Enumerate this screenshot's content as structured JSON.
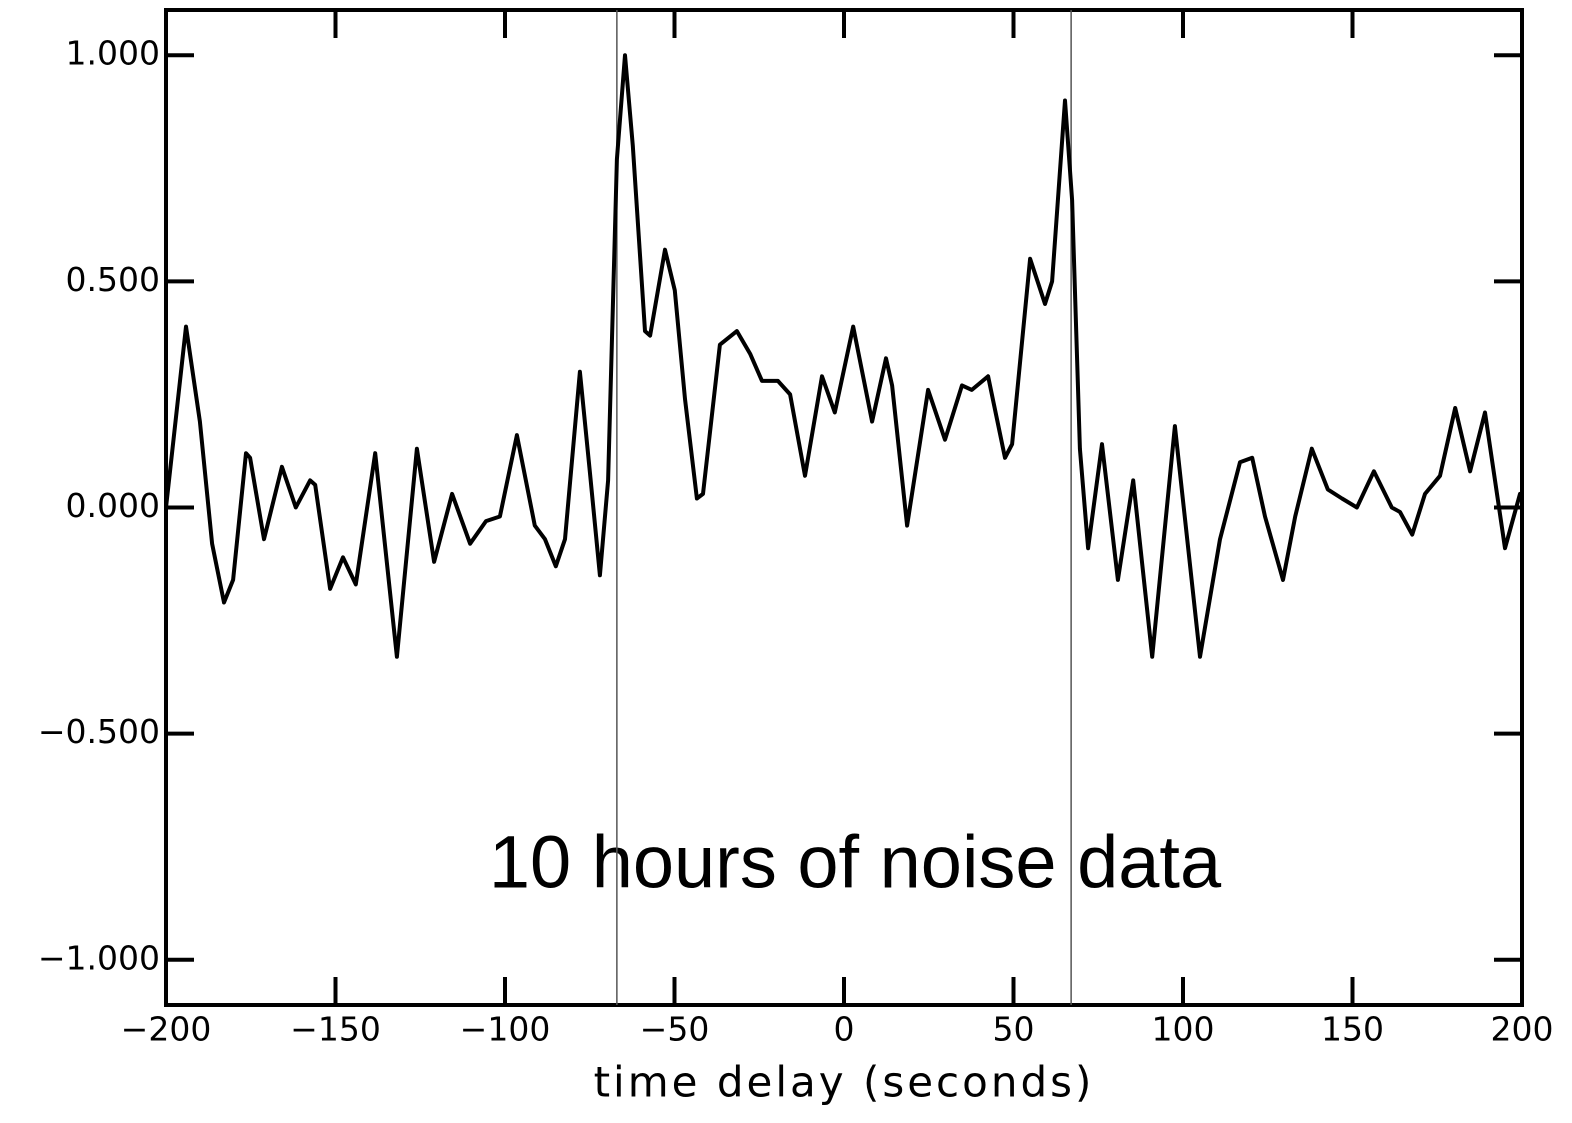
{
  "chart_data": {
    "type": "line",
    "xlabel": "time delay (seconds)",
    "annotation": "10 hours of noise data",
    "xlim": [
      -200,
      200
    ],
    "ylim": [
      -1.1,
      1.1
    ],
    "xticks": [
      {
        "value": -200,
        "label": "−200"
      },
      {
        "value": -150,
        "label": "−150"
      },
      {
        "value": -100,
        "label": "−100"
      },
      {
        "value": -50,
        "label": "−50"
      },
      0,
      50,
      100,
      150,
      200
    ],
    "yticks": [
      {
        "value": -1,
        "label": "−1.000"
      },
      {
        "value": -0.5,
        "label": "−0.500"
      },
      {
        "value": 0,
        "label": "0.000"
      },
      {
        "value": 0.5,
        "label": "0.500"
      },
      {
        "value": 1,
        "label": "1.000"
      }
    ],
    "vlines": [
      -67,
      67
    ],
    "color": "#000000",
    "x": [
      -200,
      -194.1,
      -190,
      -186.4,
      -182.9,
      -180.2,
      -176.4,
      -175.2,
      -171.1,
      -165.8,
      -161.7,
      -157.5,
      -156,
      -151.6,
      -147.8,
      -144,
      -138.3,
      -131.9,
      -126,
      -120.9,
      -115.6,
      -110.3,
      -105.6,
      -101.5,
      -96.5,
      -91.2,
      -88.2,
      -85,
      -82.3,
      -77.9,
      -75,
      -72,
      -69.6,
      -67,
      -64.6,
      -62.3,
      -58.7,
      -57.2,
      -52.8,
      -49.9,
      -46.9,
      -43.4,
      -41.6,
      -36.6,
      -31.6,
      -27.7,
      -24.2,
      -19.5,
      -15.9,
      -11.5,
      -6.5,
      -2.7,
      2.7,
      8.3,
      12.4,
      14.2,
      18.6,
      24.8,
      29.8,
      34.8,
      37.7,
      42.5,
      47.5,
      49.6,
      54.9,
      59.3,
      61.4,
      65.2,
      67.3,
      69.6,
      72,
      76.1,
      80.8,
      85.3,
      90.9,
      97.6,
      105,
      110.9,
      116.8,
      120.4,
      124.2,
      129.5,
      133.1,
      138,
      142.7,
      146.9,
      151.3,
      156.3,
      161.6,
      164,
      167.6,
      171.4,
      175.8,
      180.3,
      184.7,
      189.1,
      195,
      199.4
    ],
    "values": [
      0,
      0.4,
      0.19,
      -0.08,
      -0.21,
      -0.16,
      0.12,
      0.11,
      -0.07,
      0.09,
      0,
      0.06,
      0.05,
      -0.18,
      -0.11,
      -0.17,
      0.12,
      -0.33,
      0.13,
      -0.12,
      0.03,
      -0.08,
      -0.03,
      -0.02,
      0.16,
      -0.04,
      -0.07,
      -0.13,
      -0.07,
      0.3,
      0.08,
      -0.15,
      0.06,
      0.77,
      1,
      0.8,
      0.39,
      0.38,
      0.57,
      0.48,
      0.24,
      0.02,
      0.03,
      0.36,
      0.39,
      0.34,
      0.28,
      0.28,
      0.25,
      0.07,
      0.29,
      0.21,
      0.4,
      0.19,
      0.33,
      0.27,
      -0.04,
      0.26,
      0.15,
      0.27,
      0.26,
      0.29,
      0.11,
      0.14,
      0.55,
      0.45,
      0.5,
      0.9,
      0.68,
      0.13,
      -0.09,
      0.14,
      -0.16,
      0.06,
      -0.33,
      0.18,
      -0.33,
      -0.07,
      0.1,
      0.11,
      -0.02,
      -0.16,
      -0.02,
      0.13,
      0.04,
      0.02,
      0,
      0.08,
      0,
      -0.01,
      -0.06,
      0.03,
      0.07,
      0.22,
      0.08,
      0.21,
      -0.09,
      0.03
    ]
  }
}
